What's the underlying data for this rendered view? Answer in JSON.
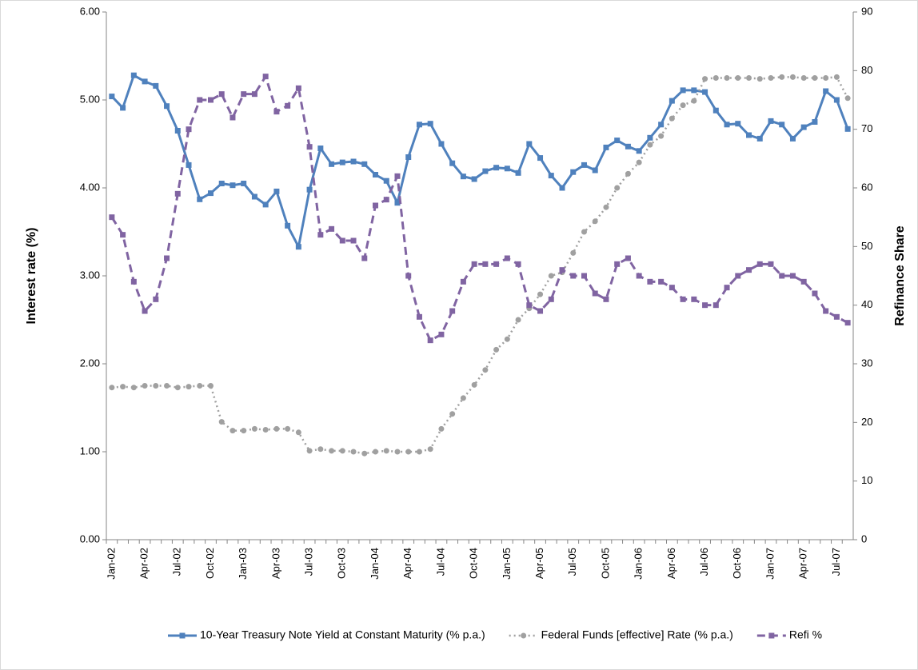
{
  "chart_data": {
    "type": "line",
    "categories": [
      "Jan-02",
      null,
      null,
      "Apr-02",
      null,
      null,
      "Jul-02",
      null,
      null,
      "Oct-02",
      null,
      null,
      "Jan-03",
      null,
      null,
      "Apr-03",
      null,
      null,
      "Jul-03",
      null,
      null,
      "Oct-03",
      null,
      null,
      "Jan-04",
      null,
      null,
      "Apr-04",
      null,
      null,
      "Jul-04",
      null,
      null,
      "Oct-04",
      null,
      null,
      "Jan-05",
      null,
      null,
      "Apr-05",
      null,
      null,
      "Jul-05",
      null,
      null,
      "Oct-05",
      null,
      null,
      "Jan-06",
      null,
      null,
      "Apr-06",
      null,
      null,
      "Jul-06",
      null,
      null,
      "Oct-06",
      null,
      null,
      "Jan-07",
      null,
      null,
      "Apr-07",
      null,
      null,
      "Jul-07",
      null
    ],
    "y_label": "Interest rate (%)",
    "y2_label": "Refinance Share",
    "ylim": [
      0,
      6
    ],
    "yticks": [
      {
        "value": 0,
        "label": "0.00"
      },
      {
        "value": 1,
        "label": "1.00"
      },
      {
        "value": 2,
        "label": "2.00"
      },
      {
        "value": 3,
        "label": "3.00"
      },
      {
        "value": 4,
        "label": "4.00"
      },
      {
        "value": 5,
        "label": "5.00"
      },
      {
        "value": 6,
        "label": "6.00"
      }
    ],
    "y2lim": [
      0,
      90
    ],
    "y2ticks": [
      0,
      10,
      20,
      30,
      40,
      50,
      60,
      70,
      80,
      90
    ],
    "grid": false,
    "legend": "bottom",
    "series": [
      {
        "name": "10-Year Treasury Note Yield at Constant Maturity (% p.a.)",
        "color": "#4f81bd",
        "style": "solid",
        "marker": "square",
        "values": [
          5.04,
          4.91,
          5.28,
          5.21,
          5.16,
          4.93,
          4.65,
          4.26,
          3.87,
          3.94,
          4.05,
          4.03,
          4.05,
          3.9,
          3.81,
          3.96,
          3.57,
          3.33,
          3.98,
          4.45,
          4.27,
          4.29,
          4.3,
          4.27,
          4.15,
          4.08,
          3.83,
          4.35,
          4.72,
          4.73,
          4.5,
          4.28,
          4.13,
          4.1,
          4.19,
          4.23,
          4.22,
          4.17,
          4.5,
          4.34,
          4.14,
          4.0,
          4.18,
          4.26,
          4.2,
          4.46,
          4.54,
          4.47,
          4.42,
          4.57,
          4.72,
          4.99,
          5.11,
          5.11,
          5.09,
          4.88,
          4.72,
          4.73,
          4.6,
          4.56,
          4.76,
          4.72,
          4.56,
          4.69,
          4.75,
          5.1,
          5.0,
          4.67
        ]
      },
      {
        "name": "Federal Funds [effective] Rate (% p.a.)",
        "color": "#a0a0a0",
        "style": "dotted",
        "marker": "circle",
        "values": [
          1.73,
          1.74,
          1.73,
          1.75,
          1.75,
          1.75,
          1.73,
          1.74,
          1.75,
          1.75,
          1.34,
          1.24,
          1.24,
          1.26,
          1.25,
          1.26,
          1.26,
          1.22,
          1.01,
          1.03,
          1.01,
          1.01,
          1.0,
          0.98,
          1.0,
          1.01,
          1.0,
          1.0,
          1.0,
          1.03,
          1.26,
          1.43,
          1.61,
          1.76,
          1.93,
          2.16,
          2.28,
          2.5,
          2.63,
          2.79,
          3.0,
          3.04,
          3.26,
          3.5,
          3.62,
          3.78,
          4.0,
          4.16,
          4.29,
          4.49,
          4.59,
          4.79,
          4.94,
          4.99,
          5.24,
          5.25,
          5.25,
          5.25,
          5.25,
          5.24,
          5.25,
          5.26,
          5.26,
          5.25,
          5.25,
          5.25,
          5.26,
          5.02
        ]
      },
      {
        "name": "Refi %",
        "color": "#8064a2",
        "style": "dashed",
        "marker": "square",
        "axis": "y2",
        "values": [
          55,
          52,
          44,
          39,
          41,
          48,
          59,
          70,
          75,
          75,
          76,
          72,
          76,
          76,
          79,
          73,
          74,
          77,
          67,
          52,
          53,
          51,
          51,
          48,
          57,
          58,
          62,
          45,
          38,
          34,
          35,
          39,
          44,
          47,
          47,
          47,
          48,
          47,
          40,
          39,
          41,
          46,
          45,
          45,
          42,
          41,
          47,
          48,
          45,
          44,
          44,
          43,
          41,
          41,
          40,
          40,
          43,
          45,
          46,
          47,
          47,
          45,
          45,
          44,
          42,
          39,
          38,
          37
        ]
      }
    ]
  }
}
